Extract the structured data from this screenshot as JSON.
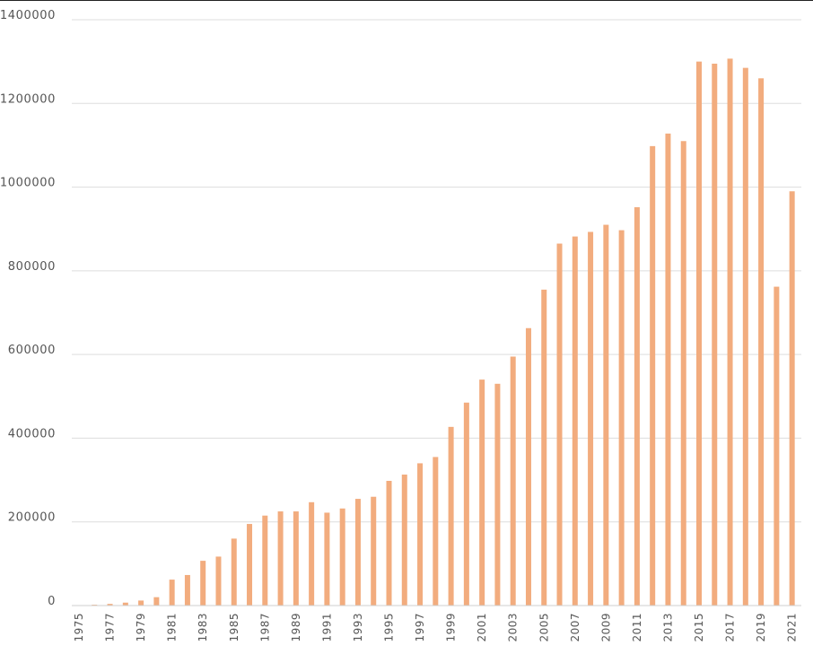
{
  "chart_data": {
    "type": "bar",
    "title": "",
    "xlabel": "",
    "ylabel": "",
    "ylim": [
      0,
      1400000
    ],
    "yticks": [
      0,
      200000,
      400000,
      600000,
      800000,
      1000000,
      1200000,
      1400000
    ],
    "ytick_labels": [
      "0",
      "200000",
      "400000",
      "600000",
      "800000",
      "1000000",
      "1200000",
      "1400000"
    ],
    "grid": true,
    "bar_color": "#f2ac7e",
    "categories": [
      "1975",
      "1976",
      "1977",
      "1978",
      "1979",
      "1980",
      "1981",
      "1982",
      "1983",
      "1984",
      "1985",
      "1986",
      "1987",
      "1988",
      "1989",
      "1990",
      "1991",
      "1992",
      "1993",
      "1994",
      "1995",
      "1996",
      "1997",
      "1998",
      "1999",
      "2000",
      "2001",
      "2002",
      "2003",
      "2004",
      "2005",
      "2006",
      "2007",
      "2008",
      "2009",
      "2010",
      "2011",
      "2012",
      "2013",
      "2014",
      "2015",
      "2016",
      "2017",
      "2018",
      "2019",
      "2020",
      "2021"
    ],
    "x_tick_labels": [
      "1975",
      "",
      "1977",
      "",
      "1979",
      "",
      "1981",
      "",
      "1983",
      "",
      "1985",
      "",
      "1987",
      "",
      "1989",
      "",
      "1991",
      "",
      "1993",
      "",
      "1995",
      "",
      "1997",
      "",
      "1999",
      "",
      "2001",
      "",
      "2003",
      "",
      "2005",
      "",
      "2007",
      "",
      "2009",
      "",
      "2011",
      "",
      "2013",
      "",
      "2015",
      "",
      "2017",
      "",
      "2019",
      "",
      "2021"
    ],
    "values": [
      1000,
      2000,
      4000,
      7000,
      12000,
      20000,
      62000,
      73000,
      107000,
      117000,
      160000,
      195000,
      215000,
      225000,
      225000,
      247000,
      222000,
      232000,
      255000,
      260000,
      298000,
      313000,
      340000,
      355000,
      427000,
      485000,
      540000,
      530000,
      595000,
      663000,
      755000,
      865000,
      882000,
      893000,
      910000,
      897000,
      952000,
      1098000,
      1128000,
      1110000,
      1300000,
      1295000,
      1307000,
      1285000,
      1260000,
      762000,
      990000
    ]
  }
}
